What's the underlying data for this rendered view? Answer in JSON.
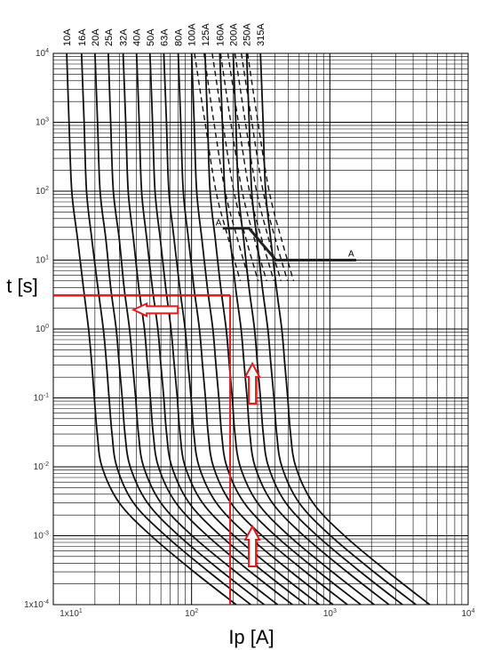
{
  "chart_data": {
    "type": "line",
    "title": "",
    "xlabel": "Ip [A]",
    "ylabel": "t [s]",
    "xscale": "log",
    "yscale": "log",
    "xlim": [
      10,
      10000
    ],
    "ylim": [
      0.0001,
      10000
    ],
    "grid": true,
    "x_ticks": [
      {
        "base": "1x10",
        "exp": "1"
      },
      {
        "base": "10",
        "exp": "2"
      },
      {
        "base": "10",
        "exp": "3"
      },
      {
        "base": "10",
        "exp": "4"
      }
    ],
    "y_ticks": [
      {
        "base": "1x10",
        "exp": "-4"
      },
      {
        "base": "10",
        "exp": "-3"
      },
      {
        "base": "10",
        "exp": "-2"
      },
      {
        "base": "10",
        "exp": "-1"
      },
      {
        "base": "10",
        "exp": "0"
      },
      {
        "base": "10",
        "exp": "1"
      },
      {
        "base": "10",
        "exp": "2"
      },
      {
        "base": "10",
        "exp": "3"
      },
      {
        "base": "10",
        "exp": "4"
      }
    ],
    "series": [
      {
        "name": "10A",
        "style": "solid",
        "points": [
          [
            12.5,
            10000
          ],
          [
            13,
            1000
          ],
          [
            13.6,
            100
          ],
          [
            15,
            20
          ],
          [
            16.5,
            4
          ],
          [
            18,
            1
          ],
          [
            19,
            0.3
          ],
          [
            19.8,
            0.1
          ],
          [
            20.8,
            0.03
          ],
          [
            22.5,
            0.01
          ],
          [
            30,
            0.003
          ],
          [
            51,
            0.001
          ],
          [
            104,
            0.0003
          ],
          [
            210,
            0.0001
          ]
        ]
      },
      {
        "name": "16A",
        "style": "solid",
        "points": [
          [
            16,
            10000
          ],
          [
            16.7,
            1000
          ],
          [
            17.4,
            100
          ],
          [
            19,
            20
          ],
          [
            21,
            4
          ],
          [
            23,
            1
          ],
          [
            24.3,
            0.3
          ],
          [
            25.3,
            0.1
          ],
          [
            26.6,
            0.03
          ],
          [
            28.8,
            0.01
          ],
          [
            38,
            0.003
          ],
          [
            65,
            0.001
          ],
          [
            133,
            0.0003
          ],
          [
            268,
            0.0001
          ]
        ]
      },
      {
        "name": "20A",
        "style": "solid",
        "points": [
          [
            20,
            10000
          ],
          [
            20.9,
            1000
          ],
          [
            21.8,
            100
          ],
          [
            24,
            20
          ],
          [
            26,
            4
          ],
          [
            28.5,
            1
          ],
          [
            30,
            0.3
          ],
          [
            31.5,
            0.1
          ],
          [
            33,
            0.03
          ],
          [
            36,
            0.01
          ],
          [
            48,
            0.003
          ],
          [
            81,
            0.001
          ],
          [
            166,
            0.0003
          ],
          [
            335,
            0.0001
          ]
        ]
      },
      {
        "name": "25A",
        "style": "solid",
        "points": [
          [
            25,
            10000
          ],
          [
            26,
            1000
          ],
          [
            27.2,
            100
          ],
          [
            30,
            20
          ],
          [
            32.5,
            4
          ],
          [
            35.6,
            1
          ],
          [
            37.5,
            0.3
          ],
          [
            39.4,
            0.1
          ],
          [
            41.3,
            0.03
          ],
          [
            45,
            0.01
          ],
          [
            60,
            0.003
          ],
          [
            101,
            0.001
          ],
          [
            208,
            0.0003
          ],
          [
            419,
            0.0001
          ]
        ]
      },
      {
        "name": "32A",
        "style": "solid",
        "points": [
          [
            32,
            10000
          ],
          [
            33.4,
            1000
          ],
          [
            34.8,
            100
          ],
          [
            38,
            20
          ],
          [
            41.5,
            4
          ],
          [
            45.6,
            1
          ],
          [
            48,
            0.3
          ],
          [
            50.4,
            0.1
          ],
          [
            52.8,
            0.03
          ],
          [
            57.6,
            0.01
          ],
          [
            77,
            0.003
          ],
          [
            130,
            0.001
          ],
          [
            266,
            0.0003
          ],
          [
            536,
            0.0001
          ]
        ]
      },
      {
        "name": "40A",
        "style": "solid",
        "points": [
          [
            40,
            10000
          ],
          [
            41.8,
            1000
          ],
          [
            43.5,
            100
          ],
          [
            47.5,
            20
          ],
          [
            52,
            4
          ],
          [
            57,
            1
          ],
          [
            60,
            0.3
          ],
          [
            63,
            0.1
          ],
          [
            66,
            0.03
          ],
          [
            72,
            0.01
          ],
          [
            96,
            0.003
          ],
          [
            162,
            0.001
          ],
          [
            332,
            0.0003
          ],
          [
            670,
            0.0001
          ]
        ]
      },
      {
        "name": "50A",
        "style": "solid",
        "points": [
          [
            50,
            10000
          ],
          [
            52.2,
            1000
          ],
          [
            54.4,
            100
          ],
          [
            59.4,
            20
          ],
          [
            65,
            4
          ],
          [
            71,
            1
          ],
          [
            75,
            0.3
          ],
          [
            78.8,
            0.1
          ],
          [
            82.5,
            0.03
          ],
          [
            90,
            0.01
          ],
          [
            120,
            0.003
          ],
          [
            203,
            0.001
          ],
          [
            415,
            0.0003
          ],
          [
            838,
            0.0001
          ]
        ]
      },
      {
        "name": "63A",
        "style": "solid",
        "points": [
          [
            63,
            10000
          ],
          [
            65.8,
            1000
          ],
          [
            68.5,
            100
          ],
          [
            74.8,
            20
          ],
          [
            82,
            4
          ],
          [
            89.8,
            1
          ],
          [
            94.5,
            0.3
          ],
          [
            99.2,
            0.1
          ],
          [
            104,
            0.03
          ],
          [
            113.4,
            0.01
          ],
          [
            151,
            0.003
          ],
          [
            255,
            0.001
          ],
          [
            523,
            0.0003
          ],
          [
            1055,
            0.0001
          ]
        ]
      },
      {
        "name": "80A",
        "style": "solid",
        "points": [
          [
            80,
            10000
          ],
          [
            83.5,
            1000
          ],
          [
            87,
            100
          ],
          [
            95,
            20
          ],
          [
            104,
            4
          ],
          [
            114,
            1
          ],
          [
            120,
            0.3
          ],
          [
            126,
            0.1
          ],
          [
            132,
            0.03
          ],
          [
            144,
            0.01
          ],
          [
            192,
            0.003
          ],
          [
            324,
            0.001
          ],
          [
            664,
            0.0003
          ],
          [
            1340,
            0.0001
          ]
        ]
      },
      {
        "name": "100A",
        "style": "solid",
        "points": [
          [
            100,
            10000
          ],
          [
            104.4,
            1000
          ],
          [
            108.8,
            100
          ],
          [
            118.8,
            20
          ],
          [
            130,
            4
          ],
          [
            142.5,
            1
          ],
          [
            150,
            0.3
          ],
          [
            157.5,
            0.1
          ],
          [
            165,
            0.03
          ],
          [
            180,
            0.01
          ],
          [
            240,
            0.003
          ],
          [
            405,
            0.001
          ],
          [
            830,
            0.0003
          ],
          [
            1675,
            0.0001
          ]
        ]
      },
      {
        "name": "125A",
        "style": "solid",
        "points": [
          [
            125,
            10000
          ],
          [
            130.5,
            1000
          ],
          [
            136,
            100
          ],
          [
            148.5,
            20
          ],
          [
            162.5,
            4
          ],
          [
            178,
            1
          ],
          [
            187.5,
            0.3
          ],
          [
            197,
            0.1
          ],
          [
            206,
            0.03
          ],
          [
            225,
            0.01
          ],
          [
            300,
            0.003
          ],
          [
            506,
            0.001
          ],
          [
            1038,
            0.0003
          ],
          [
            2094,
            0.0001
          ]
        ]
      },
      {
        "name": "160A",
        "style": "solid",
        "points": [
          [
            160,
            10000
          ],
          [
            167,
            1000
          ],
          [
            174,
            100
          ],
          [
            190,
            20
          ],
          [
            208,
            4
          ],
          [
            228,
            1
          ],
          [
            240,
            0.3
          ],
          [
            252,
            0.1
          ],
          [
            264,
            0.03
          ],
          [
            288,
            0.01
          ],
          [
            384,
            0.003
          ],
          [
            648,
            0.001
          ],
          [
            1328,
            0.0003
          ],
          [
            2680,
            0.0001
          ]
        ]
      },
      {
        "name": "200A",
        "style": "solid",
        "points": [
          [
            200,
            10000
          ],
          [
            209,
            1000
          ],
          [
            218,
            100
          ],
          [
            238,
            20
          ],
          [
            260,
            4
          ],
          [
            285,
            1
          ],
          [
            300,
            0.3
          ],
          [
            315,
            0.1
          ],
          [
            330,
            0.03
          ],
          [
            360,
            0.01
          ],
          [
            480,
            0.003
          ],
          [
            810,
            0.001
          ],
          [
            1660,
            0.0003
          ],
          [
            3350,
            0.0001
          ]
        ]
      },
      {
        "name": "250A",
        "style": "solid",
        "points": [
          [
            250,
            10000
          ],
          [
            261,
            1000
          ],
          [
            272,
            100
          ],
          [
            297,
            20
          ],
          [
            325,
            4
          ],
          [
            356,
            1
          ],
          [
            375,
            0.3
          ],
          [
            394,
            0.1
          ],
          [
            413,
            0.03
          ],
          [
            450,
            0.01
          ],
          [
            600,
            0.003
          ],
          [
            1013,
            0.001
          ],
          [
            2075,
            0.0003
          ],
          [
            4188,
            0.0001
          ]
        ]
      },
      {
        "name": "315A",
        "style": "solid",
        "points": [
          [
            315,
            10000
          ],
          [
            329,
            1000
          ],
          [
            343,
            100
          ],
          [
            374,
            20
          ],
          [
            410,
            4
          ],
          [
            449,
            1
          ],
          [
            473,
            0.3
          ],
          [
            496,
            0.1
          ],
          [
            520,
            0.03
          ],
          [
            567,
            0.01
          ],
          [
            756,
            0.003
          ],
          [
            1276,
            0.001
          ],
          [
            2615,
            0.0003
          ],
          [
            5276,
            0.0001
          ]
        ]
      },
      {
        "name": "",
        "style": "dashed",
        "points": [
          [
            105,
            10000
          ],
          [
            125,
            1000
          ],
          [
            150,
            100
          ],
          [
            185,
            20
          ],
          [
            225,
            5
          ]
        ]
      },
      {
        "name": "",
        "style": "dashed",
        "points": [
          [
            123,
            10000
          ],
          [
            145,
            1000
          ],
          [
            175,
            100
          ],
          [
            215,
            20
          ],
          [
            262,
            5
          ]
        ]
      },
      {
        "name": "",
        "style": "dashed",
        "points": [
          [
            141,
            10000
          ],
          [
            168,
            1000
          ],
          [
            202,
            100
          ],
          [
            248,
            20
          ],
          [
            303,
            5
          ]
        ]
      },
      {
        "name": "",
        "style": "dashed",
        "points": [
          [
            162,
            10000
          ],
          [
            192,
            1000
          ],
          [
            232,
            100
          ],
          [
            285,
            20
          ],
          [
            349,
            5
          ]
        ]
      },
      {
        "name": "",
        "style": "dashed",
        "points": [
          [
            183,
            10000
          ],
          [
            218,
            1000
          ],
          [
            262,
            100
          ],
          [
            322,
            20
          ],
          [
            394,
            5
          ]
        ]
      },
      {
        "name": "",
        "style": "dashed",
        "points": [
          [
            206,
            10000
          ],
          [
            245,
            1000
          ],
          [
            295,
            100
          ],
          [
            362,
            20
          ],
          [
            443,
            5
          ]
        ]
      },
      {
        "name": "",
        "style": "dashed",
        "points": [
          [
            229,
            10000
          ],
          [
            273,
            1000
          ],
          [
            329,
            100
          ],
          [
            404,
            20
          ],
          [
            494,
            5
          ]
        ]
      },
      {
        "name": "",
        "style": "dashed",
        "points": [
          [
            254,
            10000
          ],
          [
            302,
            1000
          ],
          [
            364,
            100
          ],
          [
            447,
            20
          ],
          [
            547,
            5
          ]
        ]
      }
    ],
    "limit_line": {
      "label_start": "A",
      "label_end": "A",
      "points": [
        [
          168,
          29
        ],
        [
          260,
          29
        ],
        [
          407,
          10
        ],
        [
          1550,
          10
        ]
      ]
    },
    "annotations": {
      "horizontal_line": {
        "x": [
          10,
          190
        ],
        "y": 3.1
      },
      "vertical_line": {
        "x": 190,
        "y": [
          0.0001,
          3.1
        ]
      },
      "arrows": [
        {
          "direction": "left",
          "at": [
            55,
            1.9
          ]
        },
        {
          "direction": "up",
          "at": [
            275,
            0.15
          ]
        },
        {
          "direction": "up",
          "at": [
            275,
            0.00065
          ]
        }
      ]
    },
    "colors": {
      "curve": "#111111",
      "grid": "#000000",
      "annotation": "#e31a1c",
      "limit": "#222222"
    }
  }
}
